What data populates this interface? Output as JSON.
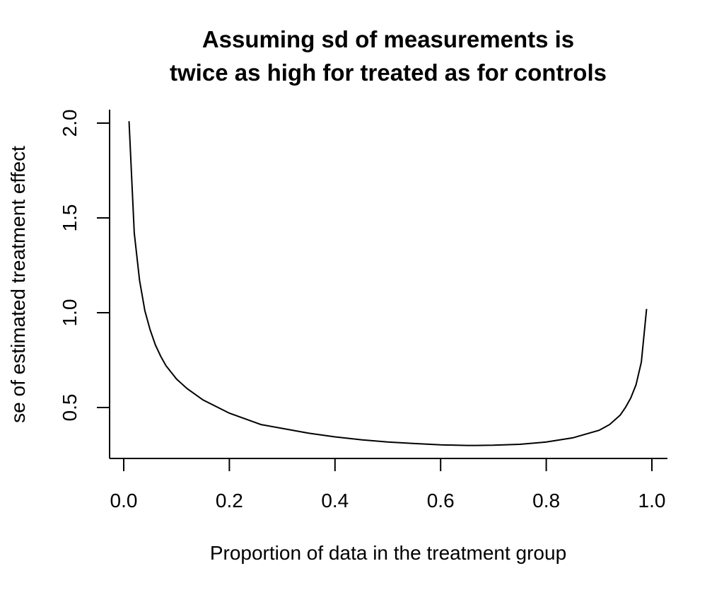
{
  "chart_data": {
    "type": "line",
    "title": [
      "Assuming sd of measurements is",
      "twice as high for treated as for controls"
    ],
    "xlabel": "Proportion of data in the treatment group",
    "ylabel": "se of estimated treatment effect",
    "xlim": [
      0.0,
      1.0
    ],
    "ylim": [
      0.27,
      2.05
    ],
    "xticks": [
      "0.0",
      "0.2",
      "0.4",
      "0.6",
      "0.8",
      "1.0"
    ],
    "yticks": [
      "0.5",
      "1.0",
      "1.5",
      "2.0"
    ],
    "grid": false,
    "series": [
      {
        "x": [
          0.01,
          0.02,
          0.03,
          0.04,
          0.05,
          0.06,
          0.07,
          0.08,
          0.1,
          0.12,
          0.15,
          0.2,
          0.25,
          0.26,
          0.3,
          0.35,
          0.4,
          0.45,
          0.5,
          0.55,
          0.6,
          0.65,
          0.667,
          0.7,
          0.75,
          0.8,
          0.85,
          0.9,
          0.92,
          0.94,
          0.95,
          0.96,
          0.97,
          0.98,
          0.99
        ],
        "y": [
          2.01,
          1.42,
          1.17,
          1.01,
          0.91,
          0.83,
          0.77,
          0.72,
          0.65,
          0.6,
          0.54,
          0.47,
          0.42,
          0.41,
          0.39,
          0.365,
          0.345,
          0.33,
          0.318,
          0.31,
          0.303,
          0.3,
          0.3,
          0.301,
          0.306,
          0.318,
          0.34,
          0.38,
          0.41,
          0.46,
          0.5,
          0.55,
          0.62,
          0.74,
          1.02
        ]
      }
    ]
  }
}
